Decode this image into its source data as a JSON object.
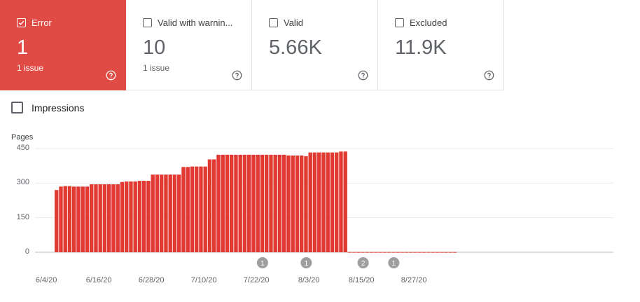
{
  "tiles": [
    {
      "label": "Error",
      "checked": true,
      "value": "1",
      "sub": "1 issue",
      "active": true
    },
    {
      "label": "Valid with warnin...",
      "checked": false,
      "value": "10",
      "sub": "1 issue",
      "active": false
    },
    {
      "label": "Valid",
      "checked": false,
      "value": "5.66K",
      "sub": "",
      "active": false
    },
    {
      "label": "Excluded",
      "checked": false,
      "value": "11.9K",
      "sub": "",
      "active": false
    }
  ],
  "impressions": {
    "label": "Impressions",
    "checked": false
  },
  "colors": {
    "error": "#e04b45",
    "bar": "#e03a32",
    "marker": "#9e9e9e",
    "grid": "#ebebeb"
  },
  "chart_data": {
    "type": "bar",
    "ylabel": "Pages",
    "ylim": [
      0,
      450
    ],
    "yticks": [
      0,
      150,
      300,
      450
    ],
    "x_start": "6/4/20",
    "xtick_labels": [
      "6/4/20",
      "6/16/20",
      "6/28/20",
      "7/10/20",
      "7/22/20",
      "8/3/20",
      "8/15/20",
      "8/27/20"
    ],
    "xtick_day_index": [
      0,
      12,
      24,
      36,
      48,
      60,
      72,
      84
    ],
    "series": [
      {
        "name": "Error",
        "values": [
          270,
          285,
          287,
          287,
          285,
          285,
          285,
          285,
          295,
          295,
          295,
          295,
          295,
          295,
          295,
          305,
          307,
          307,
          307,
          310,
          310,
          310,
          337,
          337,
          337,
          337,
          337,
          337,
          337,
          370,
          370,
          372,
          372,
          372,
          372,
          403,
          403,
          423,
          423,
          423,
          423,
          423,
          423,
          423,
          423,
          423,
          423,
          423,
          423,
          423,
          423,
          423,
          423,
          420,
          420,
          420,
          420,
          417,
          433,
          433,
          433,
          433,
          433,
          433,
          433,
          437,
          437,
          1,
          1,
          1,
          1,
          1,
          1,
          1,
          1,
          1,
          1,
          1,
          1,
          1,
          1,
          1,
          1,
          1,
          1,
          1,
          1,
          1,
          1,
          1,
          1,
          1
        ]
      }
    ],
    "annotations": [
      {
        "label": "1",
        "day_index": 47
      },
      {
        "label": "1",
        "day_index": 57
      },
      {
        "label": "2",
        "day_index": 70
      },
      {
        "label": "1",
        "day_index": 77
      }
    ]
  }
}
